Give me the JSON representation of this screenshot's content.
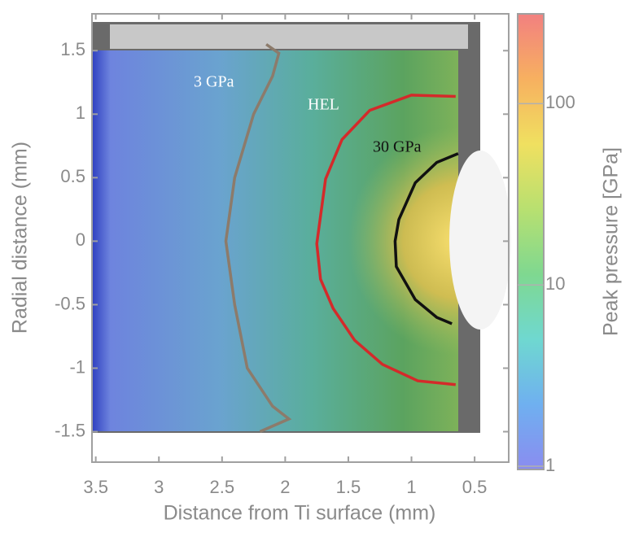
{
  "chart_data": {
    "type": "contour",
    "xlabel": "Distance from Ti surface (mm)",
    "ylabel": "Radial distance (mm)",
    "xlim": [
      3.53,
      0.23
    ],
    "ylim": [
      -1.74,
      1.79
    ],
    "xticks": [
      3.5,
      3,
      2.5,
      2,
      1.5,
      1,
      0.5
    ],
    "yticks": [
      1.5,
      1,
      0.5,
      0,
      -0.5,
      -1,
      -1.5
    ],
    "contours": [
      {
        "label": "3 GPa",
        "color": "#8c7b6b",
        "x": [
          2.15,
          2.05,
          2.1,
          2.25,
          2.4,
          2.47,
          2.4,
          2.3,
          2.1,
          1.97,
          2.2
        ],
        "y": [
          1.55,
          1.48,
          1.3,
          1.0,
          0.5,
          0,
          -0.5,
          -1.0,
          -1.3,
          -1.4,
          -1.5
        ]
      },
      {
        "label": "HEL",
        "color": "#d42a2a",
        "x": [
          0.65,
          1.0,
          1.33,
          1.55,
          1.68,
          1.75,
          1.72,
          1.62,
          1.45,
          1.23,
          0.95,
          0.65
        ],
        "y": [
          1.14,
          1.15,
          1.03,
          0.8,
          0.49,
          -0.02,
          -0.3,
          -0.53,
          -0.78,
          -0.97,
          -1.1,
          -1.13
        ]
      },
      {
        "label": "30 GPa",
        "color": "#111111",
        "x": [
          0.63,
          0.8,
          0.97,
          1.1,
          1.13,
          1.12,
          0.97,
          0.8,
          0.68
        ],
        "y": [
          0.69,
          0.62,
          0.46,
          0.17,
          0,
          -0.2,
          -0.46,
          -0.6,
          -0.65
        ]
      }
    ],
    "colorbar": {
      "label": "Peak pressure [GPa]",
      "log": true,
      "lim": [
        0.96,
        313
      ],
      "ticks": [
        1,
        10,
        100
      ],
      "colors": [
        "#8a8cf0",
        "#6fb0f0",
        "#6fd8d0",
        "#7fd890",
        "#b8e070",
        "#f0e060",
        "#f7b060",
        "#f28080"
      ]
    }
  }
}
